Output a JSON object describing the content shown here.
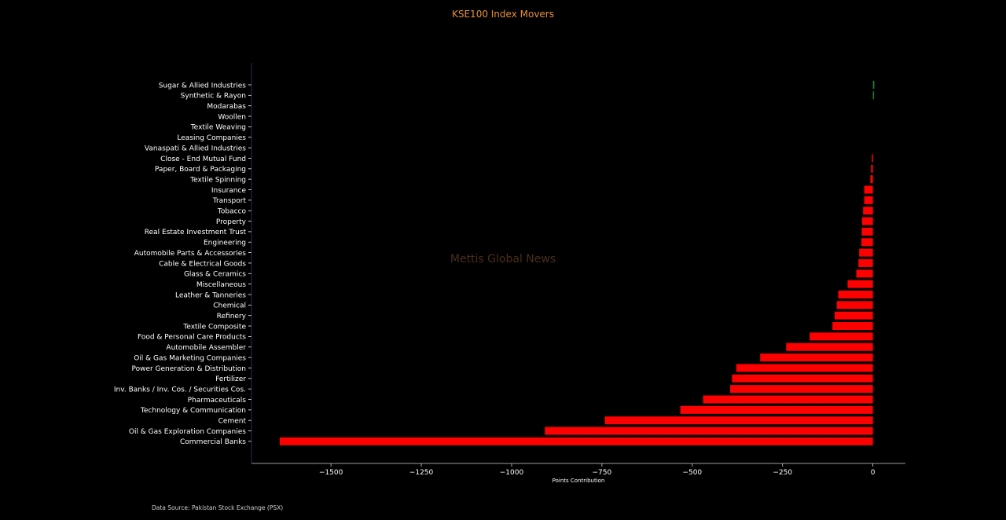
{
  "chart_data": {
    "type": "bar",
    "orientation": "horizontal",
    "title": "KSE100 Index Movers",
    "xlabel": "Points Contribution",
    "ylabel": "",
    "watermark": "Mettis Global News",
    "source": "Data Source: Pakistan Stock Exchange (PSX)",
    "xlim": [
      -1720,
      90
    ],
    "xticks": [
      -1500,
      -1250,
      -1000,
      -750,
      -500,
      -250,
      0
    ],
    "xtick_labels": [
      "−1500",
      "−1250",
      "−1000",
      "−750",
      "−500",
      "−250",
      "0"
    ],
    "grid": false,
    "colors": {
      "background": "#000000",
      "positive": "#1e7d32",
      "negative": "#ff0000",
      "title": "#e8913a",
      "text": "#ffffff",
      "watermark": "#4a2e1a",
      "axis_left": "#2a2a66",
      "axis_bottom": "#cfcfcf"
    },
    "categories": [
      "Sugar & Allied Industries",
      "Synthetic & Rayon",
      "Modarabas",
      "Woollen",
      "Textile Weaving",
      "Leasing Companies",
      "Vanaspati & Allied Industries",
      "Close - End Mutual Fund",
      "Paper, Board & Packaging",
      "Textile Spinning",
      "Insurance",
      "Transport",
      "Tobacco",
      "Property",
      "Real Estate Investment Trust",
      "Engineering",
      "Automobile Parts & Accessories",
      "Cable & Electrical Goods",
      "Glass & Ceramics",
      "Miscellaneous",
      "Leather & Tanneries",
      "Chemical",
      "Refinery",
      "Textile Composite",
      "Food & Personal Care Products",
      "Automobile Assembler",
      "Oil & Gas Marketing Companies",
      "Power Generation & Distribution",
      "Fertilizer",
      "Inv. Banks / Inv. Cos. / Securities Cos.",
      "Pharmaceuticals",
      "Technology & Communication",
      "Cement",
      "Oil & Gas Exploration Companies",
      "Commercial Banks"
    ],
    "values": [
      4,
      3,
      0,
      0,
      0,
      0,
      0,
      -3,
      -5,
      -7,
      -24,
      -24,
      -27,
      -30,
      -31,
      -32,
      -38,
      -40,
      -46,
      -70,
      -96,
      -100,
      -106,
      -112,
      -175,
      -240,
      -312,
      -378,
      -390,
      -395,
      -470,
      -533,
      -742,
      -908,
      -1642
    ]
  }
}
